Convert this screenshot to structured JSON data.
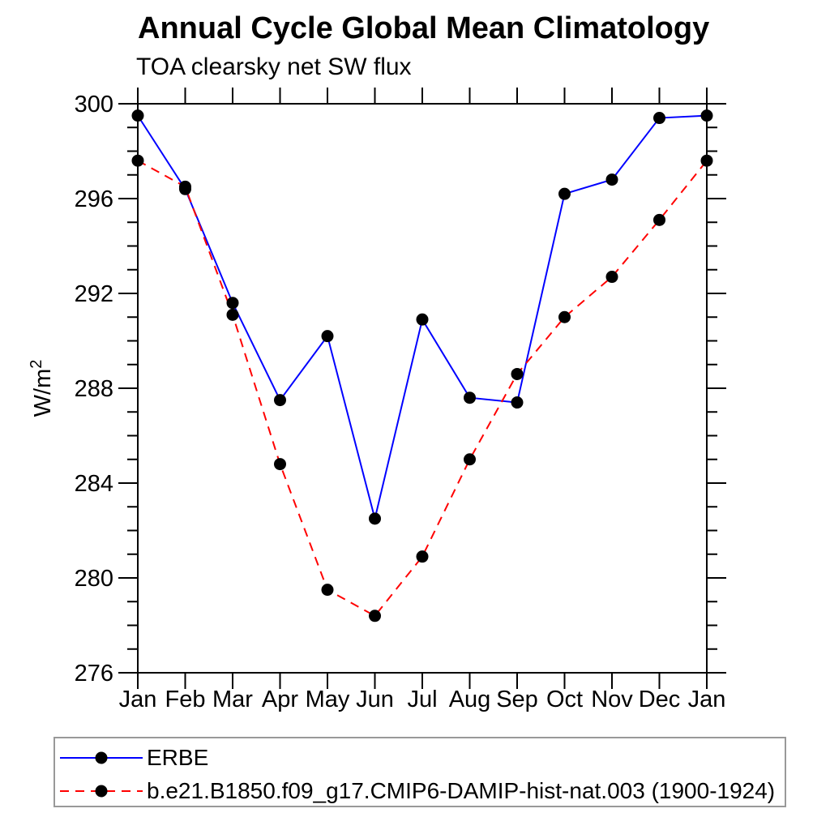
{
  "title": "Annual Cycle Global Mean Climatology",
  "subtitle": "TOA clearsky net SW flux",
  "chart_data": {
    "type": "line",
    "categories": [
      "Jan",
      "Feb",
      "Mar",
      "Apr",
      "May",
      "Jun",
      "Jul",
      "Aug",
      "Sep",
      "Oct",
      "Nov",
      "Dec",
      "Jan"
    ],
    "series": [
      {
        "name": "ERBE",
        "color": "#0000ff",
        "line_style": "solid",
        "marker": "filled-circle",
        "marker_color": "#000000",
        "values": [
          299.5,
          296.4,
          291.6,
          287.5,
          290.2,
          282.5,
          290.9,
          287.6,
          287.4,
          296.2,
          296.8,
          299.4,
          299.5
        ]
      },
      {
        "name": "b.e21.B1850.f09_g17.CMIP6-DAMIP-hist-nat.003 (1900-1924)",
        "color": "#ff0000",
        "line_style": "dashed",
        "marker": "filled-circle",
        "marker_color": "#000000",
        "values": [
          297.6,
          296.5,
          291.1,
          284.8,
          279.5,
          278.4,
          280.9,
          285.0,
          288.6,
          291.0,
          292.7,
          295.1,
          297.6
        ]
      }
    ],
    "xlabel": "",
    "ylabel": "W/m²",
    "ylim": [
      276,
      300
    ],
    "ytick_major": 4,
    "ytick_minor": 1,
    "ytick_labels": [
      "276",
      "280",
      "284",
      "288",
      "292",
      "296",
      "300"
    ],
    "grid": false,
    "tick_direction": "out",
    "legend_position": "bottom"
  }
}
